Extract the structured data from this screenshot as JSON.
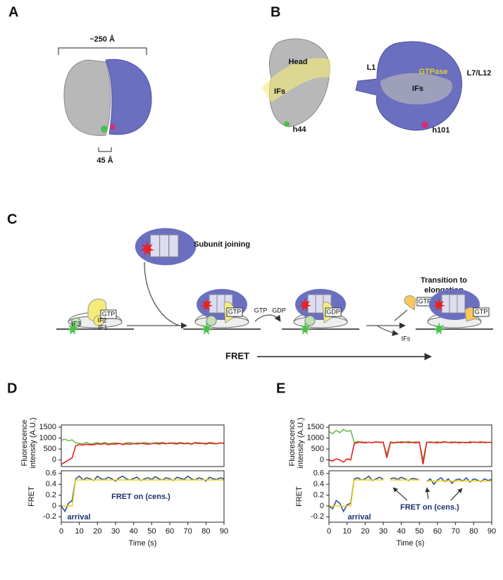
{
  "figure": {
    "panel_labels": [
      "A",
      "B",
      "C",
      "D",
      "E"
    ],
    "a": {
      "width_label": "~250 Å",
      "bar_label": "45 Å"
    },
    "b": {
      "small": [
        "Head",
        "IFs",
        "h44"
      ],
      "large": [
        "L1",
        "GTPase",
        "L7/L12",
        "IFs",
        "h101"
      ]
    },
    "c": {
      "subunit_joining": "Subunit joining",
      "transition": [
        "Transition to",
        "elongation"
      ],
      "gtp": "GTP",
      "gdp": "GDP",
      "if1": "IF1",
      "if2": "IF2",
      "if3": "IF3",
      "ifs": "IFs",
      "fret": "FRET"
    }
  },
  "chart_data": [
    {
      "type": "line",
      "ylabel": [
        "Fluorescence",
        "intensity (A.U.)"
      ],
      "x": [
        0,
        2,
        4,
        6,
        8,
        10,
        12,
        14,
        16,
        18,
        20,
        22,
        24,
        26,
        28,
        30,
        32,
        34,
        36,
        38,
        40,
        42,
        44,
        46,
        48,
        50,
        52,
        54,
        56,
        58,
        60,
        62,
        64,
        66,
        68,
        70,
        72,
        74,
        76,
        78,
        80,
        82,
        84,
        86,
        88,
        90
      ],
      "xlim": [
        0,
        90
      ],
      "ylim": [
        -300,
        1600
      ],
      "yticks": [
        0,
        500,
        1000,
        1500
      ],
      "series": [
        {
          "color": "#5fb336",
          "values": [
            900,
            950,
            880,
            920,
            780,
            760,
            740,
            800,
            720,
            760,
            790,
            750,
            800,
            740,
            770,
            780,
            760,
            720,
            790,
            800,
            750,
            780,
            760,
            800,
            770,
            740,
            790,
            780,
            800,
            760,
            750,
            790,
            770,
            800,
            760,
            780,
            740,
            800,
            790,
            770,
            760,
            800,
            780,
            750,
            790,
            770
          ]
        },
        {
          "color": "#e8211f",
          "values": [
            -200,
            -100,
            0,
            100,
            650,
            700,
            680,
            720,
            690,
            700,
            740,
            710,
            750,
            700,
            730,
            720,
            760,
            700,
            740,
            720,
            750,
            730,
            760,
            740,
            720,
            750,
            770,
            730,
            760,
            740,
            780,
            750,
            730,
            770,
            740,
            760,
            720,
            780,
            750,
            760,
            730,
            770,
            750,
            740,
            780,
            760
          ]
        }
      ]
    },
    {
      "type": "line",
      "ylabel": "FRET",
      "xlabel": "Time (s)",
      "annotations": [
        "arrival",
        "FRET on (cens.)"
      ],
      "x": [
        0,
        2,
        4,
        6,
        8,
        10,
        12,
        14,
        16,
        18,
        20,
        22,
        24,
        26,
        28,
        30,
        32,
        34,
        36,
        38,
        40,
        42,
        44,
        46,
        48,
        50,
        52,
        54,
        56,
        58,
        60,
        62,
        64,
        66,
        68,
        70,
        72,
        74,
        76,
        78,
        80,
        82,
        84,
        86,
        88,
        90
      ],
      "xlim": [
        0,
        90
      ],
      "xticks": [
        0,
        10,
        20,
        30,
        40,
        50,
        60,
        70,
        80,
        90
      ],
      "ylim": [
        -0.3,
        0.65
      ],
      "yticks": [
        -0.2,
        0,
        0.2,
        0.4,
        0.6
      ],
      "series": [
        {
          "color": "#2e4fa0",
          "values": [
            0,
            -0.1,
            0.05,
            0.1,
            0.5,
            0.55,
            0.48,
            0.52,
            0.5,
            0.47,
            0.55,
            0.5,
            0.49,
            0.53,
            0.5,
            0.46,
            0.52,
            0.55,
            0.5,
            0.48,
            0.51,
            0.53,
            0.47,
            0.5,
            0.52,
            0.49,
            0.54,
            0.5,
            0.48,
            0.52,
            0.5,
            0.47,
            0.53,
            0.51,
            0.49,
            0.55,
            0.5,
            0.48,
            0.52,
            0.5,
            0.46,
            0.53,
            0.5,
            0.49,
            0.52,
            0.5
          ]
        },
        {
          "color": "#f2d41c",
          "values": [
            0,
            0,
            0,
            0,
            0.48,
            0.48,
            0.48,
            0.48,
            0.48,
            0.48,
            0.48,
            0.48,
            0.48,
            0.48,
            0.48,
            0.48,
            0.48,
            0.48,
            0.48,
            0.48,
            0.48,
            0.48,
            0.48,
            0.48,
            0.48,
            0.48,
            0.48,
            0.48,
            0.48,
            0.48,
            0.48,
            0.48,
            0.48,
            0.48,
            0.48,
            0.48,
            0.48,
            0.48,
            0.48,
            0.48,
            0.48,
            0.48,
            0.48,
            0.48,
            0.48,
            0.48
          ]
        }
      ]
    },
    {
      "type": "line",
      "ylabel": [
        "Fluorescence",
        "intensity (A.U.)"
      ],
      "x": [
        0,
        2,
        4,
        6,
        8,
        10,
        12,
        14,
        16,
        18,
        20,
        22,
        24,
        26,
        28,
        30,
        32,
        34,
        36,
        38,
        40,
        42,
        44,
        46,
        48,
        50,
        52,
        54,
        56,
        58,
        60,
        62,
        64,
        66,
        68,
        70,
        72,
        74,
        76,
        78,
        80,
        82,
        84,
        86,
        88,
        90
      ],
      "xlim": [
        0,
        90
      ],
      "ylim": [
        -300,
        1600
      ],
      "yticks": [
        0,
        500,
        1000,
        1500
      ],
      "series": [
        {
          "color": "#5fb336",
          "values": [
            1300,
            1200,
            1350,
            1250,
            1400,
            1300,
            1350,
            800,
            850,
            780,
            820,
            800,
            790,
            810,
            820,
            800,
            250,
            820,
            800,
            790,
            840,
            810,
            780,
            800,
            830,
            810,
            0,
            820,
            790,
            800,
            840,
            780,
            810,
            800,
            830,
            790,
            820,
            800,
            780,
            840,
            810,
            800,
            790,
            820,
            800,
            810
          ]
        },
        {
          "color": "#e8211f",
          "values": [
            0,
            -50,
            50,
            0,
            -100,
            50,
            0,
            750,
            800,
            820,
            780,
            810,
            790,
            830,
            800,
            810,
            100,
            800,
            780,
            820,
            790,
            810,
            830,
            800,
            780,
            820,
            -200,
            790,
            820,
            800,
            780,
            810,
            830,
            800,
            790,
            820,
            780,
            810,
            800,
            790,
            820,
            800,
            830,
            790,
            810,
            800
          ]
        }
      ]
    },
    {
      "type": "line",
      "ylabel": "FRET",
      "xlabel": "Time (s)",
      "annotations": [
        "arrival",
        "FRET on (cens.)"
      ],
      "x": [
        0,
        2,
        4,
        6,
        8,
        10,
        12,
        14,
        16,
        18,
        20,
        22,
        24,
        26,
        28,
        30,
        32,
        34,
        36,
        38,
        40,
        42,
        44,
        46,
        48,
        50,
        52,
        54,
        56,
        58,
        60,
        62,
        64,
        66,
        68,
        70,
        72,
        74,
        76,
        78,
        80,
        82,
        84,
        86,
        88,
        90
      ],
      "xlim": [
        0,
        90
      ],
      "xticks": [
        0,
        10,
        20,
        30,
        40,
        50,
        60,
        70,
        80,
        90
      ],
      "ylim": [
        -0.3,
        0.65
      ],
      "yticks": [
        -0.2,
        0,
        0.2,
        0.4,
        0.6
      ],
      "series": [
        {
          "color": "#2e4fa0",
          "values": [
            0,
            -0.05,
            0.1,
            0.05,
            -0.1,
            0.02,
            0.05,
            0.5,
            0.52,
            0.48,
            0.5,
            0.55,
            0.47,
            0.5,
            0.53,
            0.49,
            null,
            0.5,
            0.52,
            0.49,
            0.53,
            0.5,
            0.47,
            0.51,
            0.5,
            0.48,
            null,
            0.45,
            0.5,
            0.4,
            0.48,
            0.52,
            0.45,
            0.5,
            0.42,
            0.48,
            0.5,
            0.46,
            0.52,
            0.44,
            0.5,
            0.48,
            0.45,
            0.5,
            0.47,
            0.49
          ]
        },
        {
          "color": "#f2d41c",
          "values": [
            0,
            0,
            0,
            0,
            0,
            0,
            0,
            0.48,
            0.48,
            0.48,
            0.48,
            0.48,
            0.48,
            0.48,
            0.48,
            0.48,
            null,
            0.48,
            0.48,
            0.48,
            0.48,
            0.48,
            0.48,
            0.48,
            0.48,
            0.48,
            null,
            0.46,
            0.46,
            0.46,
            0.46,
            0.46,
            0.46,
            0.46,
            0.46,
            0.46,
            0.46,
            0.46,
            0.46,
            0.46,
            0.46,
            0.46,
            0.46,
            0.46,
            0.46,
            0.46
          ]
        }
      ]
    }
  ]
}
